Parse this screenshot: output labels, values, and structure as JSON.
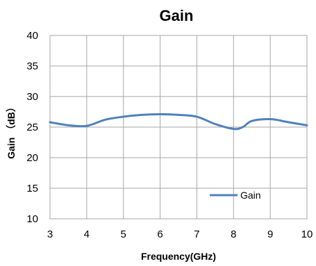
{
  "chart_data": {
    "type": "line",
    "title": "Gain",
    "xlabel": "Frequency(GHz)",
    "ylabel": "Gain （dB）",
    "xlim": [
      3,
      10
    ],
    "ylim": [
      10,
      40
    ],
    "x_ticks": [
      "3",
      "4",
      "5",
      "6",
      "7",
      "8",
      "9",
      "10"
    ],
    "y_ticks": [
      "10",
      "15",
      "20",
      "25",
      "30",
      "35",
      "40"
    ],
    "grid": true,
    "legend_position": "bottom-right",
    "series": [
      {
        "name": "Gain",
        "color": "#4f81bd",
        "x": [
          3,
          3.5,
          4,
          4.5,
          5,
          5.5,
          6,
          6.5,
          7,
          7.5,
          8,
          8.25,
          8.5,
          9,
          9.5,
          10
        ],
        "y": [
          25.8,
          25.3,
          25.2,
          26.2,
          26.7,
          27.0,
          27.1,
          27.0,
          26.7,
          25.5,
          24.7,
          25.0,
          26.0,
          26.3,
          25.8,
          25.3
        ]
      }
    ]
  }
}
